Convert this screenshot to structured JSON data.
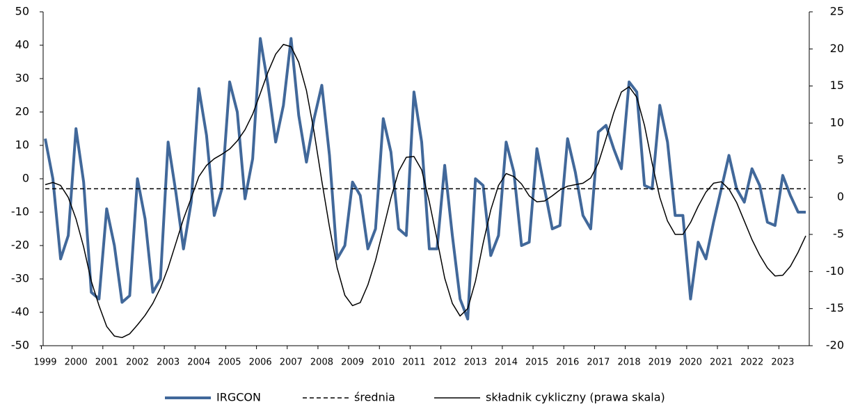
{
  "chart_data": {
    "type": "line",
    "categories": [
      "1999",
      null,
      null,
      null,
      "2000",
      null,
      null,
      null,
      "2001",
      null,
      null,
      null,
      "2002",
      null,
      null,
      null,
      "2003",
      null,
      null,
      null,
      "2004",
      null,
      null,
      null,
      "2005",
      null,
      null,
      null,
      "2006",
      null,
      null,
      null,
      "2007",
      null,
      null,
      null,
      "2008",
      null,
      null,
      null,
      "2009",
      null,
      null,
      null,
      "2010",
      null,
      null,
      null,
      "2011",
      null,
      null,
      null,
      "2012",
      null,
      null,
      null,
      "2013",
      null,
      null,
      null,
      "2014",
      null,
      null,
      null,
      "2015",
      null,
      null,
      null,
      "2016",
      null,
      null,
      null,
      "2017",
      null,
      null,
      null,
      "2018",
      null,
      null,
      null,
      "2019",
      null,
      null,
      null,
      "2020",
      null,
      null,
      null,
      "2021",
      null,
      null,
      null,
      "2022",
      null,
      null,
      null,
      "2023",
      null,
      null,
      null
    ],
    "ylim": [
      -50,
      50
    ],
    "yticks": [
      -50,
      -40,
      -30,
      -20,
      -10,
      0,
      10,
      20,
      30,
      40,
      50
    ],
    "y2lim": [
      -20,
      25
    ],
    "y2ticks": [
      -20,
      -15,
      -10,
      -5,
      0,
      5,
      10,
      15,
      20,
      25
    ],
    "series": [
      {
        "name": "IRGCON",
        "color": "#41689a",
        "values": [
          12,
          0,
          -24,
          -17,
          15,
          -1,
          -34,
          -36,
          -9,
          -20,
          -37,
          -35,
          0,
          -12,
          -34,
          -30,
          11,
          -4,
          -21,
          -7,
          27,
          13,
          -11,
          -3,
          29,
          20,
          -6,
          6,
          42,
          28,
          11,
          22,
          42,
          19,
          5,
          18,
          28,
          7,
          -24,
          -20,
          -1,
          -5,
          -21,
          -15,
          18,
          8,
          -15,
          -17,
          26,
          11,
          -21,
          -21,
          4,
          -17,
          -36,
          -42,
          0,
          -2,
          -23,
          -17,
          11,
          2,
          -20,
          -19,
          9,
          -3,
          -15,
          -14,
          12,
          2,
          -11,
          -15,
          14,
          16,
          9,
          3,
          29,
          26,
          -2,
          -3,
          22,
          11,
          -11,
          -11,
          -36,
          -19,
          -24,
          -13,
          -3,
          7,
          -3,
          -7,
          3,
          -2,
          -13,
          -14,
          1,
          -5,
          -10,
          -10
        ]
      },
      {
        "name": "średnia",
        "color": "#000000",
        "value": -3,
        "dashed": true
      },
      {
        "name": "składnik cykliczny (prawa skala)",
        "color": "#000000",
        "axis": "y2",
        "values": [
          1.7,
          2.0,
          1.6,
          0,
          -2.9,
          -6.7,
          -11.3,
          -14.6,
          -17.4,
          -18.7,
          -18.9,
          -18.4,
          -17.2,
          -15.9,
          -14.3,
          -12.2,
          -9.5,
          -6.2,
          -2.9,
          -0.1,
          2.8,
          4.3,
          5.2,
          5.8,
          6.5,
          7.6,
          9.1,
          11.2,
          14.0,
          16.9,
          19.3,
          20.6,
          20.3,
          18.2,
          14.4,
          8.8,
          2.2,
          -4.0,
          -9.5,
          -13.2,
          -14.6,
          -14.2,
          -11.8,
          -8.5,
          -4.3,
          -0.1,
          3.5,
          5.4,
          5.5,
          3.7,
          -0.6,
          -5.7,
          -10.9,
          -14.3,
          -16.0,
          -15.0,
          -11.3,
          -6.2,
          -1.7,
          1.6,
          3.2,
          2.8,
          1.8,
          0.2,
          -0.6,
          -0.5,
          0.2,
          1.0,
          1.5,
          1.7,
          1.9,
          2.6,
          4.6,
          7.9,
          11.4,
          14.2,
          14.9,
          13.5,
          9.7,
          4.6,
          0.0,
          -3.2,
          -5.0,
          -5.0,
          -3.4,
          -1.2,
          0.7,
          1.9,
          2.1,
          1.1,
          -0.7,
          -3.2,
          -5.7,
          -7.8,
          -9.5,
          -10.6,
          -10.5,
          -9.3,
          -7.4,
          -5.2
        ]
      }
    ]
  }
}
